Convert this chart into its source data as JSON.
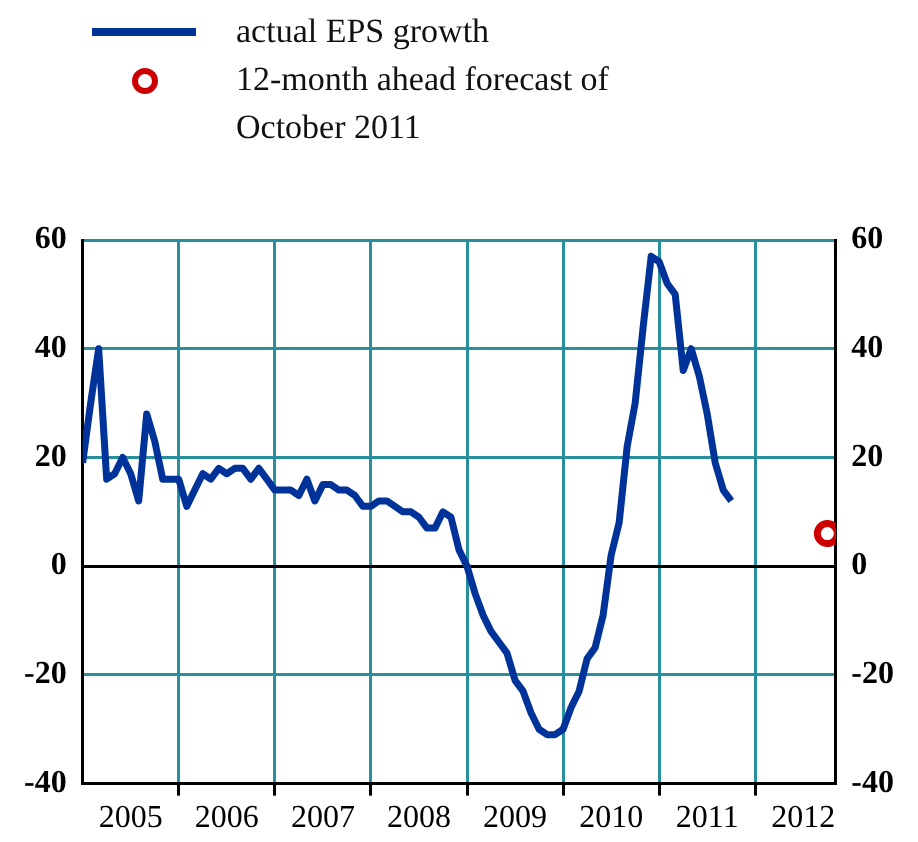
{
  "chart_data": {
    "type": "line",
    "x": [
      "2005-01",
      "2005-02",
      "2005-03",
      "2005-04",
      "2005-05",
      "2005-06",
      "2005-07",
      "2005-08",
      "2005-09",
      "2005-10",
      "2005-11",
      "2005-12",
      "2006-01",
      "2006-02",
      "2006-03",
      "2006-04",
      "2006-05",
      "2006-06",
      "2006-07",
      "2006-08",
      "2006-09",
      "2006-10",
      "2006-11",
      "2006-12",
      "2007-01",
      "2007-02",
      "2007-03",
      "2007-04",
      "2007-05",
      "2007-06",
      "2007-07",
      "2007-08",
      "2007-09",
      "2007-10",
      "2007-11",
      "2007-12",
      "2008-01",
      "2008-02",
      "2008-03",
      "2008-04",
      "2008-05",
      "2008-06",
      "2008-07",
      "2008-08",
      "2008-09",
      "2008-10",
      "2008-11",
      "2008-12",
      "2009-01",
      "2009-02",
      "2009-03",
      "2009-04",
      "2009-05",
      "2009-06",
      "2009-07",
      "2009-08",
      "2009-09",
      "2009-10",
      "2009-11",
      "2009-12",
      "2010-01",
      "2010-02",
      "2010-03",
      "2010-04",
      "2010-05",
      "2010-06",
      "2010-07",
      "2010-08",
      "2010-09",
      "2010-10",
      "2010-11",
      "2010-12",
      "2011-01",
      "2011-02",
      "2011-03",
      "2011-04",
      "2011-05",
      "2011-06",
      "2011-07",
      "2011-08",
      "2011-09",
      "2011-10"
    ],
    "series": [
      {
        "name": "actual EPS growth",
        "color": "#003399",
        "marker": "none",
        "values": [
          19,
          30,
          40,
          16,
          17,
          20,
          17,
          12,
          28,
          23,
          16,
          16,
          16,
          11,
          14,
          17,
          16,
          18,
          17,
          18,
          18,
          16,
          18,
          16,
          14,
          14,
          14,
          13,
          16,
          12,
          15,
          15,
          14,
          14,
          13,
          11,
          11,
          12,
          12,
          11,
          10,
          10,
          9,
          7,
          7,
          10,
          9,
          3,
          0,
          -5,
          -9,
          -12,
          -14,
          -16,
          -21,
          -23,
          -27,
          -30,
          -31,
          -31,
          -30,
          -26,
          -23,
          -17,
          -15,
          -9,
          2,
          8,
          22,
          30,
          44,
          57,
          56,
          52,
          50,
          36,
          40,
          35,
          28,
          19,
          14,
          12
        ]
      },
      {
        "name": "12-month ahead forecast of October 2011",
        "type": "scatter",
        "color": "#cc0000",
        "marker": "circle",
        "x": [
          "2012-10"
        ],
        "values": [
          6
        ]
      }
    ],
    "xlim": [
      "2005-01",
      "2012-11"
    ],
    "xticks": [
      {
        "value": "2005-07",
        "label": "2005"
      },
      {
        "value": "2006-01",
        "label": null
      },
      {
        "value": "2006-07",
        "label": "2006"
      },
      {
        "value": "2007-01",
        "label": null
      },
      {
        "value": "2007-07",
        "label": "2007"
      },
      {
        "value": "2008-01",
        "label": null
      },
      {
        "value": "2008-07",
        "label": "2008"
      },
      {
        "value": "2009-01",
        "label": null
      },
      {
        "value": "2009-07",
        "label": "2009"
      },
      {
        "value": "2010-01",
        "label": null
      },
      {
        "value": "2010-07",
        "label": "2010"
      },
      {
        "value": "2011-01",
        "label": null
      },
      {
        "value": "2011-07",
        "label": "2011"
      },
      {
        "value": "2012-01",
        "label": null
      },
      {
        "value": "2012-07",
        "label": "2012"
      }
    ],
    "ylim": [
      -40,
      60
    ],
    "yticks": [
      -40,
      -20,
      0,
      20,
      40,
      60
    ],
    "y2lim": [
      -40,
      60
    ],
    "y2ticks": [
      -40,
      -20,
      0,
      20,
      40,
      60
    ],
    "grid": true,
    "legend": "top left"
  }
}
